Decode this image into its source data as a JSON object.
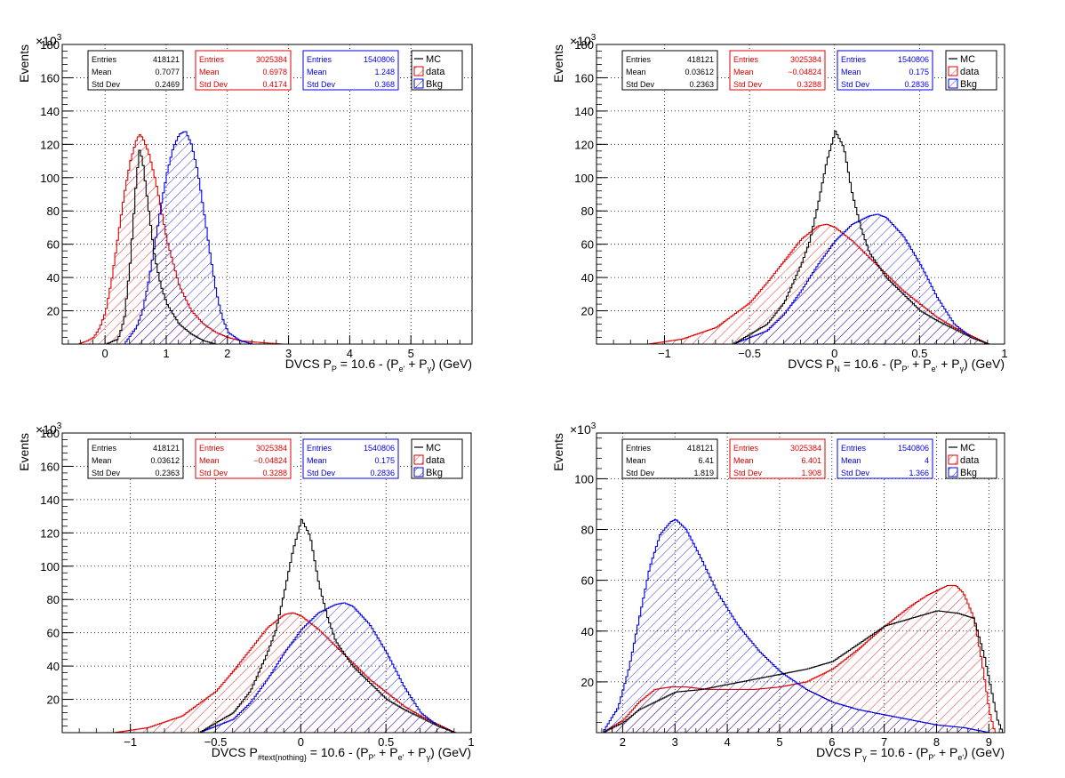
{
  "colors": {
    "mc": "#000000",
    "data": "#e00000",
    "bkg": "#0000e6",
    "grid": "#000000",
    "background": "#ffffff"
  },
  "chart_data": [
    {
      "type": "histogram",
      "ylabel": "Events",
      "yexp": "×10",
      "yexp_power": "3",
      "x_title_parts": [
        {
          "t": "DVCS P"
        },
        {
          "t": "P",
          "sub": true
        },
        {
          "t": " = 10.6 - (P"
        },
        {
          "t": "e'",
          "sub": true
        },
        {
          "t": " + P"
        },
        {
          "t": "γ",
          "sub": true
        },
        {
          "t": ") (GeV)"
        }
      ],
      "xlim": [
        -0.7,
        6.0
      ],
      "ylim": [
        0,
        180
      ],
      "xticks": [
        0,
        1,
        2,
        3,
        4,
        5
      ],
      "xtick_labels": [
        "0",
        "1",
        "2",
        "3",
        "4",
        "5"
      ],
      "yticks": [
        20,
        40,
        60,
        80,
        100,
        120,
        140,
        160,
        180
      ],
      "ytick_labels": [
        "20",
        "40",
        "60",
        "80",
        "100",
        "120",
        "140",
        "160",
        "180"
      ],
      "grid": true,
      "stats": [
        {
          "series": "MC",
          "rows": [
            [
              "Entries",
              "418121"
            ],
            [
              "Mean",
              "0.7077"
            ],
            [
              "Std Dev",
              "0.2469"
            ]
          ]
        },
        {
          "series": "data",
          "rows": [
            [
              "Entries",
              "3025384"
            ],
            [
              "Mean",
              "0.6978"
            ],
            [
              "Std Dev",
              "0.4174"
            ]
          ]
        },
        {
          "series": "Bkg",
          "rows": [
            [
              "Entries",
              "1540806"
            ],
            [
              "Mean",
              "1.248"
            ],
            [
              "Std Dev",
              "0.368"
            ]
          ]
        }
      ],
      "legend": [
        "MC",
        "data",
        "Bkg"
      ],
      "series": [
        {
          "name": "MC",
          "style": "line",
          "peak": 117,
          "x": [
            0.0,
            0.2,
            0.3,
            0.4,
            0.5,
            0.55,
            0.6,
            0.7,
            0.8,
            0.9,
            1.0,
            1.2,
            1.4,
            1.6,
            1.8
          ],
          "y": [
            0,
            3,
            15,
            50,
            100,
            117,
            110,
            80,
            52,
            35,
            24,
            12,
            6,
            2,
            0
          ]
        },
        {
          "name": "data",
          "style": "hatch",
          "x": [
            -0.45,
            -0.3,
            -0.2,
            -0.1,
            0.0,
            0.1,
            0.2,
            0.3,
            0.4,
            0.5,
            0.55,
            0.6,
            0.7,
            0.8,
            0.9,
            1.0,
            1.2,
            1.4,
            1.6,
            1.8,
            2.0,
            2.2,
            2.5,
            2.9
          ],
          "y": [
            0,
            2,
            4,
            10,
            20,
            40,
            65,
            90,
            110,
            123,
            126,
            124,
            115,
            100,
            82,
            62,
            35,
            20,
            12,
            7,
            4,
            2,
            1,
            0
          ]
        },
        {
          "name": "Bkg",
          "style": "hatch",
          "x": [
            0.3,
            0.5,
            0.6,
            0.7,
            0.8,
            0.9,
            1.0,
            1.1,
            1.2,
            1.3,
            1.4,
            1.5,
            1.6,
            1.7,
            1.8,
            1.9,
            2.0,
            2.2,
            2.4
          ],
          "y": [
            0,
            10,
            20,
            38,
            60,
            83,
            103,
            118,
            126,
            128,
            120,
            104,
            80,
            55,
            32,
            16,
            7,
            2,
            0
          ]
        }
      ]
    },
    {
      "type": "histogram",
      "ylabel": "Events",
      "yexp": "×10",
      "yexp_power": "3",
      "x_title_parts": [
        {
          "t": "DVCS P"
        },
        {
          "t": "N",
          "sub": true
        },
        {
          "t": " = 10.6 - (P"
        },
        {
          "t": "P'",
          "sub": true
        },
        {
          "t": " + P"
        },
        {
          "t": "e'",
          "sub": true
        },
        {
          "t": " + P"
        },
        {
          "t": "γ",
          "sub": true
        },
        {
          "t": ") (GeV)"
        }
      ],
      "xlim": [
        -1.4,
        1.0
      ],
      "ylim": [
        0,
        180
      ],
      "xticks": [
        -1,
        -0.5,
        0,
        0.5,
        1
      ],
      "xtick_labels": [
        "−1",
        "−0.5",
        "0",
        "0.5",
        "1"
      ],
      "yticks": [
        20,
        40,
        60,
        80,
        100,
        120,
        140,
        160,
        180
      ],
      "ytick_labels": [
        "20",
        "40",
        "60",
        "80",
        "100",
        "120",
        "140",
        "160",
        "180"
      ],
      "grid": true,
      "stats": [
        {
          "series": "MC",
          "rows": [
            [
              "Entries",
              "418121"
            ],
            [
              "Mean",
              "0.03612"
            ],
            [
              "Std Dev",
              "0.2363"
            ]
          ]
        },
        {
          "series": "data",
          "rows": [
            [
              "Entries",
              "3025384"
            ],
            [
              "Mean",
              "−0.04824"
            ],
            [
              "Std Dev",
              "0.3288"
            ]
          ]
        },
        {
          "series": "Bkg",
          "rows": [
            [
              "Entries",
              "1540806"
            ],
            [
              "Mean",
              "0.175"
            ],
            [
              "Std Dev",
              "0.2836"
            ]
          ]
        }
      ],
      "legend": [
        "MC",
        "data",
        "Bkg"
      ],
      "series": [
        {
          "name": "MC",
          "style": "line",
          "x": [
            -0.6,
            -0.4,
            -0.3,
            -0.2,
            -0.15,
            -0.1,
            -0.05,
            0.0,
            0.05,
            0.1,
            0.15,
            0.2,
            0.3,
            0.4,
            0.5,
            0.6,
            0.7,
            0.8,
            0.9
          ],
          "y": [
            0,
            12,
            25,
            48,
            62,
            85,
            110,
            128,
            118,
            90,
            70,
            55,
            40,
            30,
            20,
            14,
            9,
            4,
            0
          ]
        },
        {
          "name": "data",
          "style": "hatch",
          "x": [
            -1.1,
            -0.9,
            -0.7,
            -0.5,
            -0.4,
            -0.3,
            -0.2,
            -0.1,
            -0.05,
            0.0,
            0.1,
            0.2,
            0.3,
            0.4,
            0.5,
            0.6,
            0.7,
            0.8,
            0.9
          ],
          "y": [
            0,
            3,
            10,
            25,
            37,
            50,
            63,
            71,
            72,
            70,
            62,
            52,
            42,
            32,
            24,
            16,
            10,
            5,
            0
          ]
        },
        {
          "name": "Bkg",
          "style": "hatch",
          "x": [
            -0.6,
            -0.4,
            -0.3,
            -0.2,
            -0.1,
            0.0,
            0.1,
            0.2,
            0.25,
            0.3,
            0.4,
            0.5,
            0.6,
            0.7,
            0.8,
            0.9
          ],
          "y": [
            0,
            8,
            18,
            32,
            48,
            62,
            72,
            77,
            78,
            76,
            65,
            48,
            28,
            12,
            4,
            0
          ]
        }
      ]
    },
    {
      "type": "histogram",
      "ylabel": "Events",
      "yexp": "×10",
      "yexp_power": "3",
      "x_title_parts": [
        {
          "t": "DVCS P"
        },
        {
          "t": "#text{nothing}",
          "sub": true
        },
        {
          "t": " = 10.6 - (P"
        },
        {
          "t": "P'",
          "sub": true
        },
        {
          "t": " + P"
        },
        {
          "t": "e'",
          "sub": true
        },
        {
          "t": " + P"
        },
        {
          "t": "γ",
          "sub": true
        },
        {
          "t": ") (GeV)"
        }
      ],
      "xlim": [
        -1.4,
        1.0
      ],
      "ylim": [
        0,
        180
      ],
      "xticks": [
        -1,
        -0.5,
        0,
        0.5,
        1
      ],
      "xtick_labels": [
        "−1",
        "−0.5",
        "0",
        "0.5",
        "1"
      ],
      "yticks": [
        20,
        40,
        60,
        80,
        100,
        120,
        140,
        160,
        180
      ],
      "ytick_labels": [
        "20",
        "40",
        "60",
        "80",
        "100",
        "120",
        "140",
        "160",
        "180"
      ],
      "grid": true,
      "stats": [
        {
          "series": "MC",
          "rows": [
            [
              "Entries",
              "418121"
            ],
            [
              "Mean",
              "0.03612"
            ],
            [
              "Std Dev",
              "0.2363"
            ]
          ]
        },
        {
          "series": "data",
          "rows": [
            [
              "Entries",
              "3025384"
            ],
            [
              "Mean",
              "−0.04824"
            ],
            [
              "Std Dev",
              "0.3288"
            ]
          ]
        },
        {
          "series": "Bkg",
          "rows": [
            [
              "Entries",
              "1540806"
            ],
            [
              "Mean",
              "0.175"
            ],
            [
              "Std Dev",
              "0.2836"
            ]
          ]
        }
      ],
      "legend": [
        "MC",
        "data",
        "Bkg"
      ],
      "series": [
        {
          "name": "MC",
          "style": "line",
          "x": [
            -0.6,
            -0.4,
            -0.3,
            -0.2,
            -0.15,
            -0.1,
            -0.05,
            0.0,
            0.05,
            0.1,
            0.15,
            0.2,
            0.3,
            0.4,
            0.5,
            0.6,
            0.7,
            0.8,
            0.9
          ],
          "y": [
            0,
            12,
            25,
            48,
            62,
            85,
            110,
            128,
            118,
            90,
            70,
            55,
            40,
            30,
            20,
            14,
            9,
            4,
            0
          ]
        },
        {
          "name": "data",
          "style": "hatch",
          "x": [
            -1.1,
            -0.9,
            -0.7,
            -0.5,
            -0.4,
            -0.3,
            -0.2,
            -0.1,
            -0.05,
            0.0,
            0.1,
            0.2,
            0.3,
            0.4,
            0.5,
            0.6,
            0.7,
            0.8,
            0.9
          ],
          "y": [
            0,
            3,
            10,
            25,
            37,
            50,
            63,
            71,
            72,
            70,
            62,
            52,
            42,
            32,
            24,
            16,
            10,
            5,
            0
          ]
        },
        {
          "name": "Bkg",
          "style": "hatch",
          "x": [
            -0.6,
            -0.4,
            -0.3,
            -0.2,
            -0.1,
            0.0,
            0.1,
            0.2,
            0.25,
            0.3,
            0.4,
            0.5,
            0.6,
            0.7,
            0.8,
            0.9
          ],
          "y": [
            0,
            8,
            18,
            32,
            48,
            62,
            72,
            77,
            78,
            76,
            65,
            48,
            28,
            12,
            4,
            0
          ]
        }
      ]
    },
    {
      "type": "histogram",
      "ylabel": "Events",
      "yexp": "×10",
      "yexp_power": "3",
      "x_title_parts": [
        {
          "t": "DVCS P"
        },
        {
          "t": "γ",
          "sub": true
        },
        {
          "t": " = 10.6 - (P"
        },
        {
          "t": "P'",
          "sub": true
        },
        {
          "t": " + P"
        },
        {
          "t": "e'",
          "sub": true
        },
        {
          "t": ") (GeV)"
        }
      ],
      "xlim": [
        1.5,
        9.3
      ],
      "ylim": [
        0,
        118
      ],
      "xticks": [
        2,
        3,
        4,
        5,
        6,
        7,
        8,
        9
      ],
      "xtick_labels": [
        "2",
        "3",
        "4",
        "5",
        "6",
        "7",
        "8",
        "9"
      ],
      "yticks": [
        20,
        40,
        60,
        80,
        100
      ],
      "ytick_labels": [
        "20",
        "40",
        "60",
        "80",
        "100"
      ],
      "grid": true,
      "stats": [
        {
          "series": "MC",
          "rows": [
            [
              "Entries",
              "418121"
            ],
            [
              "Mean",
              "6.41"
            ],
            [
              "Std Dev",
              "1.819"
            ]
          ]
        },
        {
          "series": "data",
          "rows": [
            [
              "Entries",
              "3025384"
            ],
            [
              "Mean",
              "6.401"
            ],
            [
              "Std Dev",
              "1.908"
            ]
          ]
        },
        {
          "series": "Bkg",
          "rows": [
            [
              "Entries",
              "1540806"
            ],
            [
              "Mean",
              "4"
            ],
            [
              "Std Dev",
              "1.366"
            ]
          ]
        }
      ],
      "legend": [
        "MC",
        "data",
        "Bkg"
      ],
      "series": [
        {
          "name": "MC",
          "style": "line",
          "x": [
            1.6,
            2.0,
            2.3,
            2.6,
            3.0,
            3.5,
            4.0,
            4.5,
            5.0,
            5.5,
            6.0,
            6.5,
            7.0,
            7.5,
            8.0,
            8.4,
            8.7,
            8.9,
            9.05,
            9.15,
            9.25
          ],
          "y": [
            0,
            4,
            9,
            12,
            16,
            17,
            19,
            21,
            23,
            25,
            28,
            35,
            42,
            45,
            48,
            47,
            45,
            30,
            15,
            5,
            0
          ]
        },
        {
          "name": "data",
          "style": "hatch",
          "x": [
            1.6,
            2.0,
            2.3,
            2.6,
            2.9,
            3.2,
            3.6,
            4.0,
            4.5,
            5.0,
            5.5,
            6.0,
            6.5,
            7.0,
            7.5,
            7.8,
            8.0,
            8.2,
            8.35,
            8.5,
            8.7,
            8.85,
            9.0,
            9.1
          ],
          "y": [
            0,
            5,
            12,
            17,
            18,
            18,
            17,
            17,
            17,
            18,
            20,
            25,
            33,
            42,
            50,
            54,
            56,
            58,
            58,
            55,
            45,
            28,
            8,
            0
          ]
        },
        {
          "name": "Bkg",
          "style": "hatch",
          "x": [
            1.6,
            1.9,
            2.1,
            2.3,
            2.5,
            2.7,
            2.9,
            3.0,
            3.2,
            3.5,
            3.8,
            4.2,
            4.6,
            5.0,
            5.5,
            6.0,
            6.5,
            7.0,
            7.5,
            8.0,
            8.5,
            9.0
          ],
          "y": [
            0,
            10,
            25,
            45,
            65,
            78,
            83,
            84,
            80,
            68,
            55,
            42,
            32,
            24,
            17,
            12,
            9,
            7,
            5,
            3,
            2,
            0
          ]
        }
      ]
    }
  ]
}
